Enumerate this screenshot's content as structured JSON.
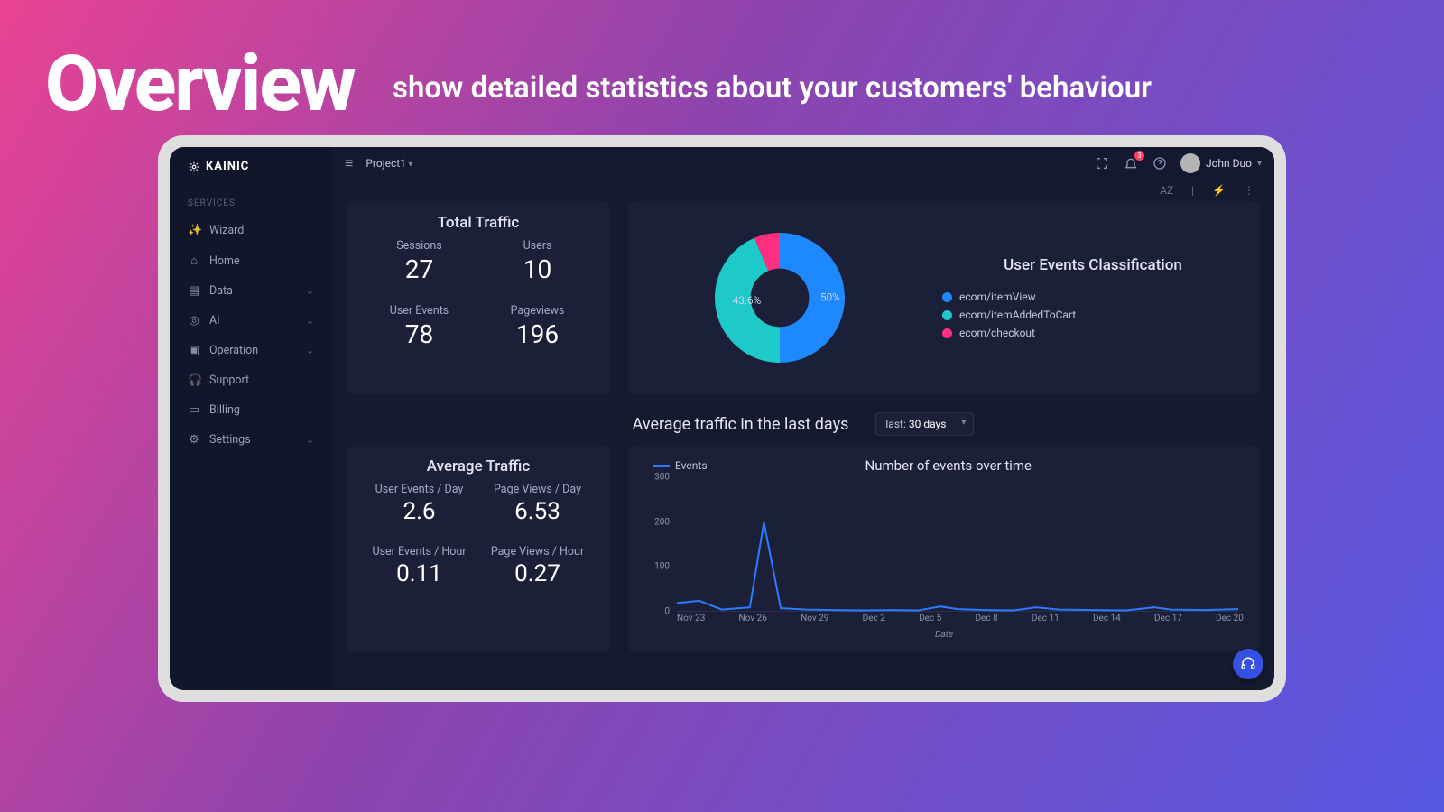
{
  "hero": {
    "title": "Overview",
    "subtitle": "show detailed statistics about your customers' behaviour"
  },
  "brand": "KAINIC",
  "sidebar": {
    "section": "SERVICES",
    "items": [
      {
        "label": "Wizard",
        "icon": "✨",
        "expandable": false
      },
      {
        "label": "Home",
        "icon": "⌂",
        "expandable": false
      },
      {
        "label": "Data",
        "icon": "▤",
        "expandable": true
      },
      {
        "label": "AI",
        "icon": "◎",
        "expandable": true
      },
      {
        "label": "Operation",
        "icon": "▣",
        "expandable": true
      },
      {
        "label": "Support",
        "icon": "🎧",
        "expandable": false
      },
      {
        "label": "Billing",
        "icon": "▭",
        "expandable": false
      },
      {
        "label": "Settings",
        "icon": "⚙",
        "expandable": true
      }
    ]
  },
  "topbar": {
    "project": "Project1",
    "notif_count": "3",
    "user_name": "John Duo"
  },
  "mini_toolbar": {
    "sort": "AZ",
    "sep": "|",
    "bolt": "⚡",
    "more": "⋮"
  },
  "total_traffic": {
    "title": "Total Traffic",
    "stats": [
      {
        "label": "Sessions",
        "value": "27"
      },
      {
        "label": "Users",
        "value": "10"
      },
      {
        "label": "User Events",
        "value": "78"
      },
      {
        "label": "Pageviews",
        "value": "196"
      }
    ]
  },
  "events_class": {
    "title": "User Events Classification",
    "type": "donut",
    "background": "#1b2038",
    "hole_ratio": 0.45,
    "slices": [
      {
        "label": "ecom/itemView",
        "pct": 50.0,
        "color": "#1E88FF",
        "show_label": "50%",
        "label_pos": "right"
      },
      {
        "label": "ecom/itemAddedToCart",
        "pct": 43.6,
        "color": "#1EC9C9",
        "show_label": "43.6%",
        "label_pos": "left"
      },
      {
        "label": "ecom/checkout",
        "pct": 6.4,
        "color": "#FF2E7E",
        "show_label": "",
        "label_pos": "none"
      }
    ]
  },
  "avg_header": {
    "title": "Average traffic in the last days",
    "dropdown_prefix": "last:",
    "dropdown_value": "30 days"
  },
  "avg_traffic": {
    "title": "Average Traffic",
    "stats": [
      {
        "label": "User Events / Day",
        "value": "2.6"
      },
      {
        "label": "Page Views / Day",
        "value": "6.53"
      },
      {
        "label": "User Events / Hour",
        "value": "0.11"
      },
      {
        "label": "Page Views / Hour",
        "value": "0.27"
      }
    ]
  },
  "line_chart": {
    "title": "Number of events over time",
    "series_name": "Events",
    "series_color": "#2b7bff",
    "type": "line",
    "ylim": [
      0,
      300
    ],
    "yticks": [
      0,
      100,
      200,
      300
    ],
    "x_labels": [
      "Nov 23",
      "Nov 26",
      "Nov 29",
      "Dec 2",
      "Dec 5",
      "Dec 8",
      "Dec 11",
      "Dec 14",
      "Dec 17",
      "Dec 20"
    ],
    "x_axis_title": "Date",
    "points": [
      {
        "x": 0.0,
        "y": 20
      },
      {
        "x": 0.04,
        "y": 25
      },
      {
        "x": 0.08,
        "y": 5
      },
      {
        "x": 0.13,
        "y": 10
      },
      {
        "x": 0.155,
        "y": 205
      },
      {
        "x": 0.185,
        "y": 8
      },
      {
        "x": 0.23,
        "y": 5
      },
      {
        "x": 0.28,
        "y": 4
      },
      {
        "x": 0.33,
        "y": 3
      },
      {
        "x": 0.38,
        "y": 4
      },
      {
        "x": 0.43,
        "y": 3
      },
      {
        "x": 0.47,
        "y": 12
      },
      {
        "x": 0.5,
        "y": 6
      },
      {
        "x": 0.55,
        "y": 4
      },
      {
        "x": 0.6,
        "y": 3
      },
      {
        "x": 0.64,
        "y": 10
      },
      {
        "x": 0.68,
        "y": 5
      },
      {
        "x": 0.74,
        "y": 4
      },
      {
        "x": 0.8,
        "y": 3
      },
      {
        "x": 0.85,
        "y": 10
      },
      {
        "x": 0.88,
        "y": 5
      },
      {
        "x": 0.94,
        "y": 4
      },
      {
        "x": 1.0,
        "y": 6
      }
    ],
    "line_width": 2,
    "grid_color": "#2a3050",
    "background": "#1b2038"
  },
  "fab_icon": "🎧"
}
